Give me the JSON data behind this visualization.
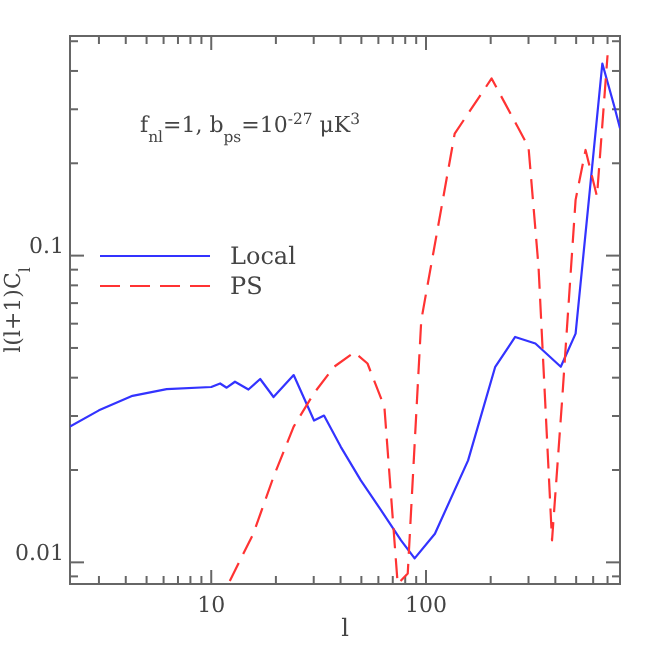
{
  "chart_data": {
    "type": "line",
    "xlabel": "l",
    "ylabel": "l(l+1)C$_{l}$",
    "log": "xy",
    "grid": false,
    "legend": "left",
    "xlim": [
      2.2,
      800
    ],
    "ylim": [
      0.0085,
      0.52
    ],
    "xticks": [
      {
        "value": 3,
        "label": null
      },
      {
        "value": 4,
        "label": null
      },
      {
        "value": 5,
        "label": null
      },
      {
        "value": 6,
        "label": null
      },
      {
        "value": 7,
        "label": null
      },
      {
        "value": 8,
        "label": null
      },
      {
        "value": 9,
        "label": null
      },
      10,
      {
        "value": 20,
        "label": null
      },
      {
        "value": 30,
        "label": null
      },
      {
        "value": 40,
        "label": null
      },
      {
        "value": 50,
        "label": null
      },
      {
        "value": 60,
        "label": null
      },
      {
        "value": 70,
        "label": null
      },
      {
        "value": 80,
        "label": null
      },
      {
        "value": 90,
        "label": null
      },
      100,
      {
        "value": 200,
        "label": null
      },
      {
        "value": 300,
        "label": null
      },
      {
        "value": 400,
        "label": null
      },
      {
        "value": 500,
        "label": null
      },
      {
        "value": 600,
        "label": null
      },
      {
        "value": 700,
        "label": null
      },
      {
        "value": 800,
        "label": null
      }
    ],
    "yticks": [
      {
        "value": 0.009,
        "label": null
      },
      0.01,
      {
        "value": 0.02,
        "label": null
      },
      {
        "value": 0.03,
        "label": null
      },
      {
        "value": 0.04,
        "label": null
      },
      {
        "value": 0.05,
        "label": null
      },
      {
        "value": 0.06,
        "label": null
      },
      {
        "value": 0.07,
        "label": null
      },
      {
        "value": 0.08,
        "label": null
      },
      {
        "value": 0.09,
        "label": null
      },
      0.1,
      {
        "value": 0.2,
        "label": null
      },
      {
        "value": 0.3,
        "label": null
      },
      {
        "value": 0.4,
        "label": null
      },
      {
        "value": 0.5,
        "label": null
      }
    ],
    "annotations": [
      "f$_{nl}$=1,  b$_{ps}$=10$^{-27}$ μK$^{3}$"
    ],
    "series": [
      {
        "name": "Local",
        "color": "#3333ff",
        "line_style": "solid",
        "x": [
          2.2,
          3,
          4.3,
          6.2,
          10,
          11,
          11.8,
          12.9,
          14.9,
          16.9,
          19.5,
          24.2,
          30.1,
          33.5,
          40.1,
          49.7,
          61.7,
          76.5,
          88.5,
          110,
          157,
          210,
          260,
          323,
          424,
          497,
          573,
          662,
          754,
          800
        ],
        "values": [
          0.0277,
          0.0313,
          0.0349,
          0.0367,
          0.0373,
          0.0383,
          0.0371,
          0.0388,
          0.0366,
          0.0396,
          0.0346,
          0.0408,
          0.029,
          0.0301,
          0.0238,
          0.0185,
          0.0148,
          0.0118,
          0.0103,
          0.0124,
          0.0215,
          0.0434,
          0.0543,
          0.0517,
          0.0434,
          0.0557,
          0.152,
          0.423,
          0.305,
          0.26
        ]
      },
      {
        "name": "PS",
        "color": "#ff3333",
        "line_style": "dashed",
        "x": [
          12.2,
          15.7,
          19.5,
          24.2,
          30,
          37.3,
          46.3,
          53.4,
          64,
          73.8,
          82.2,
          95,
          136,
          202,
          300,
          334,
          386,
          430,
          497,
          553,
          625,
          700
        ],
        "values": [
          0.0087,
          0.0124,
          0.019,
          0.0277,
          0.0355,
          0.0434,
          0.0484,
          0.0445,
          0.0321,
          0.0085,
          0.0092,
          0.0615,
          0.25,
          0.378,
          0.226,
          0.092,
          0.0118,
          0.0337,
          0.152,
          0.221,
          0.156,
          0.45
        ]
      }
    ]
  }
}
